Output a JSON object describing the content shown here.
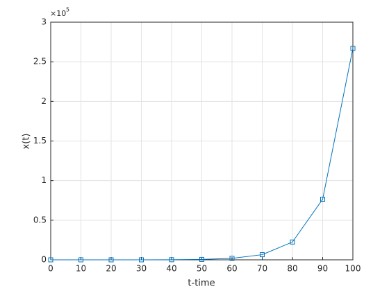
{
  "chart_data": {
    "type": "line",
    "x_label": "t-time",
    "y_label": "x(t)",
    "y_exponent_base": "×10",
    "y_exponent": "5",
    "x": [
      0,
      10,
      20,
      30,
      40,
      50,
      60,
      70,
      80,
      90,
      100
    ],
    "values": [
      1,
      3,
      10,
      35,
      150,
      500,
      1900,
      6500,
      22500,
      76500,
      267000
    ],
    "color": "#0072bd",
    "marker": "square",
    "xlim": [
      0,
      100
    ],
    "xticks": [
      0,
      10,
      20,
      30,
      40,
      50,
      60,
      70,
      80,
      90,
      100
    ],
    "ylim": [
      0,
      300000
    ],
    "yticks": [
      0,
      {
        "value": 50000,
        "label": "0.5"
      },
      {
        "value": 100000,
        "label": "1"
      },
      {
        "value": 150000,
        "label": "1.5"
      },
      {
        "value": 200000,
        "label": "2"
      },
      {
        "value": 250000,
        "label": "2.5"
      },
      {
        "value": 300000,
        "label": "3"
      }
    ],
    "grid": true
  }
}
